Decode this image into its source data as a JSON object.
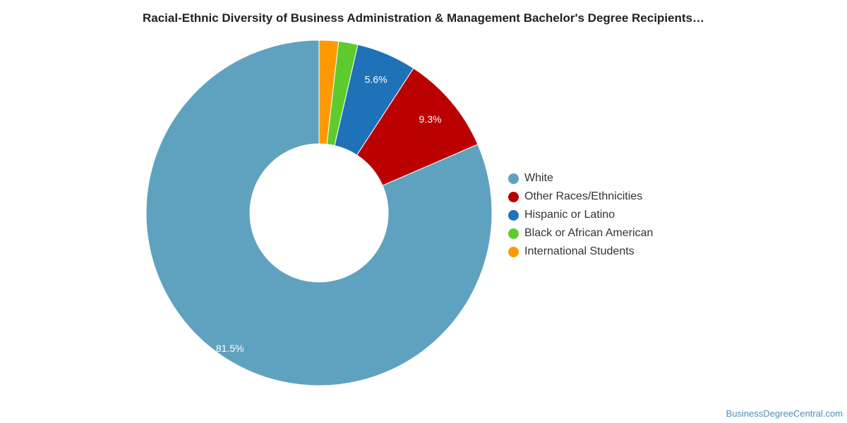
{
  "chart_data": {
    "type": "pie",
    "title": "Racial-Ethnic Diversity of Business Administration & Management Bachelor's Degree Recipients…",
    "donut": true,
    "legend_position": "right",
    "series": [
      {
        "name": "White",
        "value": 81.5,
        "label": "81.5%",
        "color": "#5fa2c0"
      },
      {
        "name": "Other Races/Ethnicities",
        "value": 9.3,
        "label": "9.3%",
        "color": "#bb0000"
      },
      {
        "name": "Hispanic or Latino",
        "value": 5.6,
        "label": "5.6%",
        "color": "#1f72b8"
      },
      {
        "name": "Black or African American",
        "value": 1.8,
        "label": "",
        "color": "#5ecb2d"
      },
      {
        "name": "International Students",
        "value": 1.8,
        "label": "",
        "color": "#ff9900"
      }
    ]
  },
  "footer": {
    "source": "BusinessDegreeCentral.com"
  }
}
